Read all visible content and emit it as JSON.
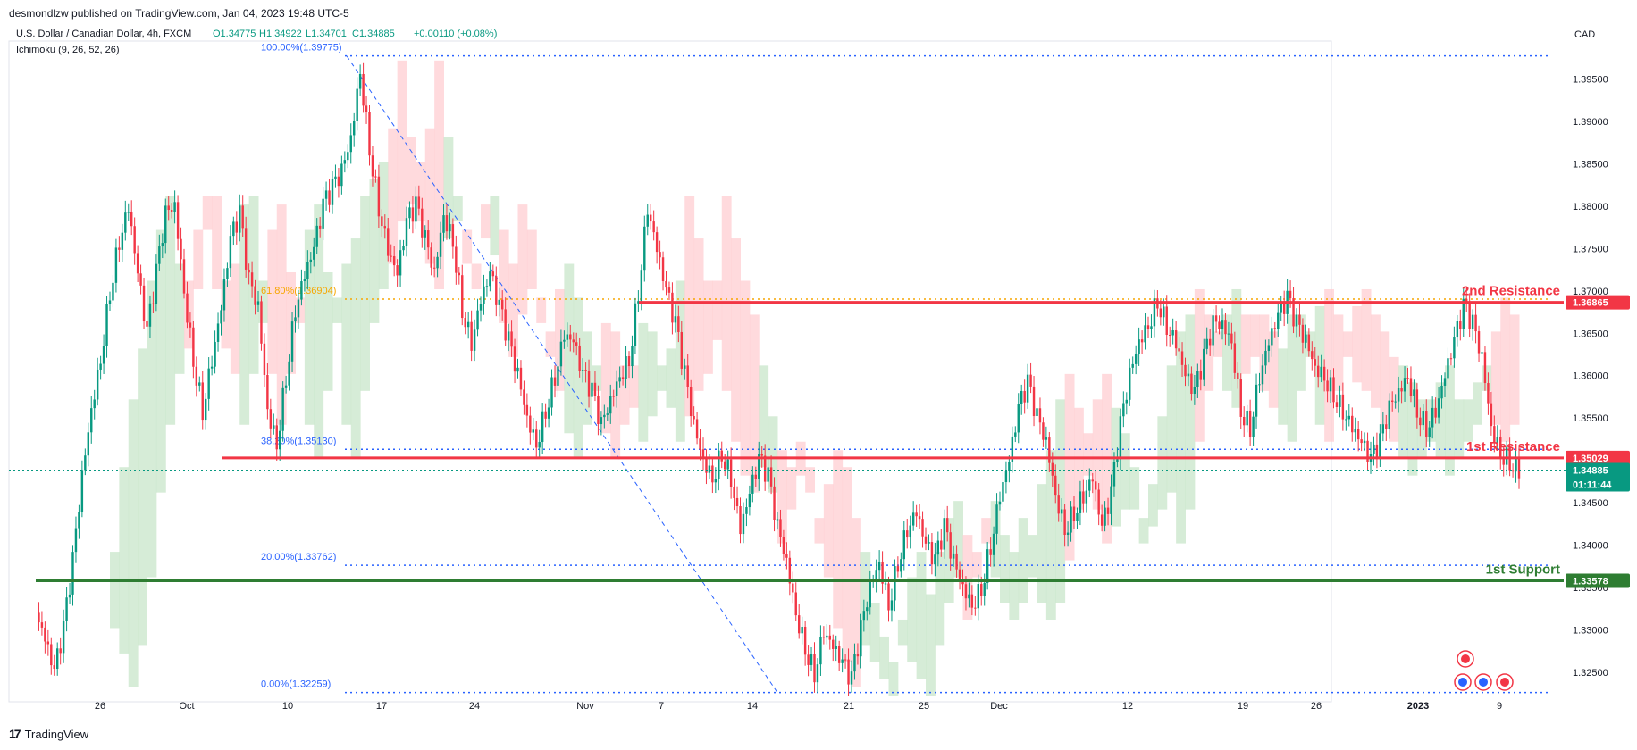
{
  "publish_line": "desmondlzw published on TradingView.com, Jan 04, 2023 19:48 UTC-5",
  "footer": {
    "brand": "TradingView",
    "logo_icon": "tradingview-logo-icon"
  },
  "colors": {
    "up": "#089981",
    "down": "#f23645",
    "resistance": "#f23645",
    "support": "#2e7d32",
    "fib_blue": "#2962ff",
    "fib_orange": "#f7a600",
    "cloud_green": "#c8e6c9",
    "cloud_red": "#ffcdd2",
    "current_price": "#089981"
  },
  "chart_data": {
    "type": "candlestick",
    "title": "U.S. Dollar / Canadian Dollar, 4h, FXCM",
    "ohlc": {
      "open": "O1.34775",
      "high": "H1.34922",
      "low": "L1.34701",
      "close": "C1.34885",
      "change": "+0.00110 (+0.08%)"
    },
    "indicator": "Ichimoku (9, 26, 52, 26)",
    "currency": "CAD",
    "x_ticks": [
      "26",
      "Oct",
      "10",
      "17",
      "24",
      "Nov",
      "7",
      "14",
      "21",
      "25",
      "Dec",
      "12",
      "19",
      "26",
      "2023",
      "9"
    ],
    "y_ticks": [
      "1.39500",
      "1.39000",
      "1.38500",
      "1.38000",
      "1.37500",
      "1.37000",
      "1.36500",
      "1.36000",
      "1.35500",
      "1.35000",
      "1.34500",
      "1.34000",
      "1.33500",
      "1.33000",
      "1.32500"
    ],
    "ylim": [
      1.3215,
      1.3995
    ],
    "fib_levels": [
      {
        "label": "100.00%(1.39775)",
        "value": 1.39775,
        "color": "blue"
      },
      {
        "label": "61.80%(1.36904)",
        "value": 1.36904,
        "color": "orange"
      },
      {
        "label": "38.20%(1.35130)",
        "value": 1.3513,
        "color": "blue"
      },
      {
        "label": "20.00%(1.33762)",
        "value": 1.33762,
        "color": "blue"
      },
      {
        "label": "0.00%(1.32259)",
        "value": 1.32259,
        "color": "blue"
      }
    ],
    "levels": [
      {
        "name": "2nd Resistance",
        "value": 1.36865,
        "tag": "1.36865",
        "color": "resistance"
      },
      {
        "name": "1st Resistance",
        "value": 1.35029,
        "tag": "1.35029",
        "color": "resistance"
      },
      {
        "name": "1st Support",
        "value": 1.33578,
        "tag": "1.33578",
        "color": "support"
      }
    ],
    "current_price": {
      "value": 1.34885,
      "tag": "1.34885",
      "countdown": "01:11:44"
    },
    "event_icons": [
      "canada-flag-icon",
      "us-flag-icon",
      "us-flag-icon",
      "canada-flag-icon",
      "canada-flag-icon"
    ],
    "price_path": [
      1.332,
      1.329,
      1.325,
      1.33,
      1.338,
      1.348,
      1.356,
      1.362,
      1.37,
      1.376,
      1.38,
      1.372,
      1.365,
      1.372,
      1.379,
      1.38,
      1.37,
      1.362,
      1.356,
      1.362,
      1.368,
      1.376,
      1.379,
      1.371,
      1.368,
      1.356,
      1.352,
      1.36,
      1.368,
      1.372,
      1.375,
      1.38,
      1.382,
      1.384,
      1.388,
      1.396,
      1.387,
      1.38,
      1.375,
      1.372,
      1.378,
      1.38,
      1.376,
      1.372,
      1.379,
      1.376,
      1.368,
      1.364,
      1.369,
      1.372,
      1.368,
      1.364,
      1.36,
      1.355,
      1.352,
      1.356,
      1.36,
      1.365,
      1.364,
      1.36,
      1.358,
      1.354,
      1.357,
      1.36,
      1.362,
      1.37,
      1.38,
      1.375,
      1.37,
      1.366,
      1.36,
      1.354,
      1.35,
      1.348,
      1.351,
      1.348,
      1.342,
      1.346,
      1.35,
      1.348,
      1.342,
      1.338,
      1.332,
      1.328,
      1.325,
      1.33,
      1.328,
      1.326,
      1.324,
      1.33,
      1.335,
      1.338,
      1.333,
      1.338,
      1.342,
      1.344,
      1.34,
      1.338,
      1.342,
      1.338,
      1.335,
      1.333,
      1.335,
      1.34,
      1.346,
      1.35,
      1.356,
      1.359,
      1.355,
      1.352,
      1.346,
      1.342,
      1.344,
      1.346,
      1.348,
      1.342,
      1.346,
      1.354,
      1.36,
      1.364,
      1.366,
      1.369,
      1.366,
      1.364,
      1.36,
      1.358,
      1.362,
      1.366,
      1.366,
      1.364,
      1.356,
      1.354,
      1.36,
      1.364,
      1.367,
      1.369,
      1.366,
      1.364,
      1.361,
      1.36,
      1.358,
      1.356,
      1.354,
      1.352,
      1.35,
      1.352,
      1.356,
      1.358,
      1.36,
      1.356,
      1.354,
      1.356,
      1.36,
      1.364,
      1.368,
      1.366,
      1.362,
      1.354,
      1.351,
      1.35,
      1.349
    ]
  }
}
